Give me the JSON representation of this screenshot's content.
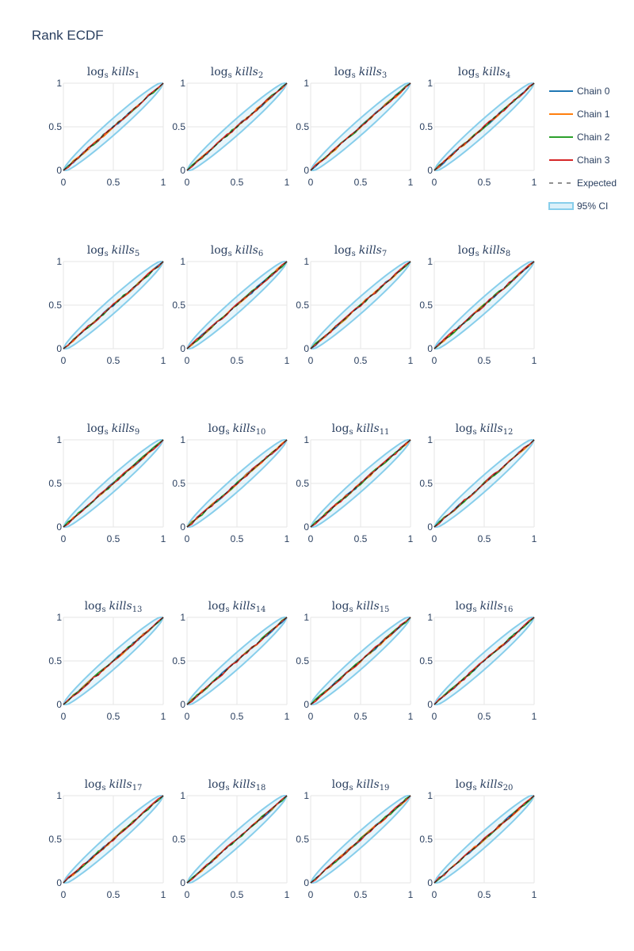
{
  "chart_data": {
    "type": "line",
    "title": "Rank ECDF",
    "grid": true,
    "legend_placement": "top-right",
    "legend": [
      {
        "name": "Chain 0",
        "color": "#1f77b4",
        "style": "solid"
      },
      {
        "name": "Chain 1",
        "color": "#ff7f0e",
        "style": "solid"
      },
      {
        "name": "Chain 2",
        "color": "#2ca02c",
        "style": "solid"
      },
      {
        "name": "Chain 3",
        "color": "#d62728",
        "style": "solid"
      },
      {
        "name": "Expected",
        "color": "#222222",
        "style": "dash"
      },
      {
        "name": "95% CI",
        "color": "#87ceeb",
        "style": "band"
      }
    ],
    "x_range": [
      0,
      1
    ],
    "y_range": [
      0,
      1
    ],
    "x_ticks": [
      "0",
      "0.5",
      "1"
    ],
    "y_ticks": [
      "0",
      "0.5",
      "1"
    ],
    "ci_half_width_at_mid": 0.1,
    "expected": {
      "x": [
        0,
        1
      ],
      "y": [
        0,
        1
      ]
    },
    "chain_curve": {
      "x": [
        0,
        0.05,
        0.1,
        0.15,
        0.2,
        0.25,
        0.3,
        0.35,
        0.4,
        0.45,
        0.5,
        0.55,
        0.6,
        0.65,
        0.7,
        0.75,
        0.8,
        0.85,
        0.9,
        0.95,
        1
      ],
      "y": [
        0,
        0.05,
        0.1,
        0.15,
        0.2,
        0.25,
        0.3,
        0.35,
        0.4,
        0.45,
        0.5,
        0.55,
        0.6,
        0.65,
        0.7,
        0.75,
        0.8,
        0.85,
        0.9,
        0.95,
        1
      ]
    },
    "panels": [
      {
        "func": "log",
        "func_sub": "s",
        "name": "kills",
        "sub": "1"
      },
      {
        "func": "log",
        "func_sub": "s",
        "name": "kills",
        "sub": "2"
      },
      {
        "func": "log",
        "func_sub": "s",
        "name": "kills",
        "sub": "3"
      },
      {
        "func": "log",
        "func_sub": "s",
        "name": "kills",
        "sub": "4"
      },
      {
        "func": "log",
        "func_sub": "s",
        "name": "kills",
        "sub": "5"
      },
      {
        "func": "log",
        "func_sub": "s",
        "name": "kills",
        "sub": "6"
      },
      {
        "func": "log",
        "func_sub": "s",
        "name": "kills",
        "sub": "7"
      },
      {
        "func": "log",
        "func_sub": "s",
        "name": "kills",
        "sub": "8"
      },
      {
        "func": "log",
        "func_sub": "s",
        "name": "kills",
        "sub": "9"
      },
      {
        "func": "log",
        "func_sub": "s",
        "name": "kills",
        "sub": "10"
      },
      {
        "func": "log",
        "func_sub": "s",
        "name": "kills",
        "sub": "11"
      },
      {
        "func": "log",
        "func_sub": "s",
        "name": "kills",
        "sub": "12"
      },
      {
        "func": "log",
        "func_sub": "s",
        "name": "kills",
        "sub": "13"
      },
      {
        "func": "log",
        "func_sub": "s",
        "name": "kills",
        "sub": "14"
      },
      {
        "func": "log",
        "func_sub": "s",
        "name": "kills",
        "sub": "15"
      },
      {
        "func": "log",
        "func_sub": "s",
        "name": "kills",
        "sub": "16"
      },
      {
        "func": "log",
        "func_sub": "s",
        "name": "kills",
        "sub": "17"
      },
      {
        "func": "log",
        "func_sub": "s",
        "name": "kills",
        "sub": "18"
      },
      {
        "func": "log",
        "func_sub": "s",
        "name": "kills",
        "sub": "19"
      },
      {
        "func": "log",
        "func_sub": "s",
        "name": "kills",
        "sub": "20"
      }
    ]
  }
}
